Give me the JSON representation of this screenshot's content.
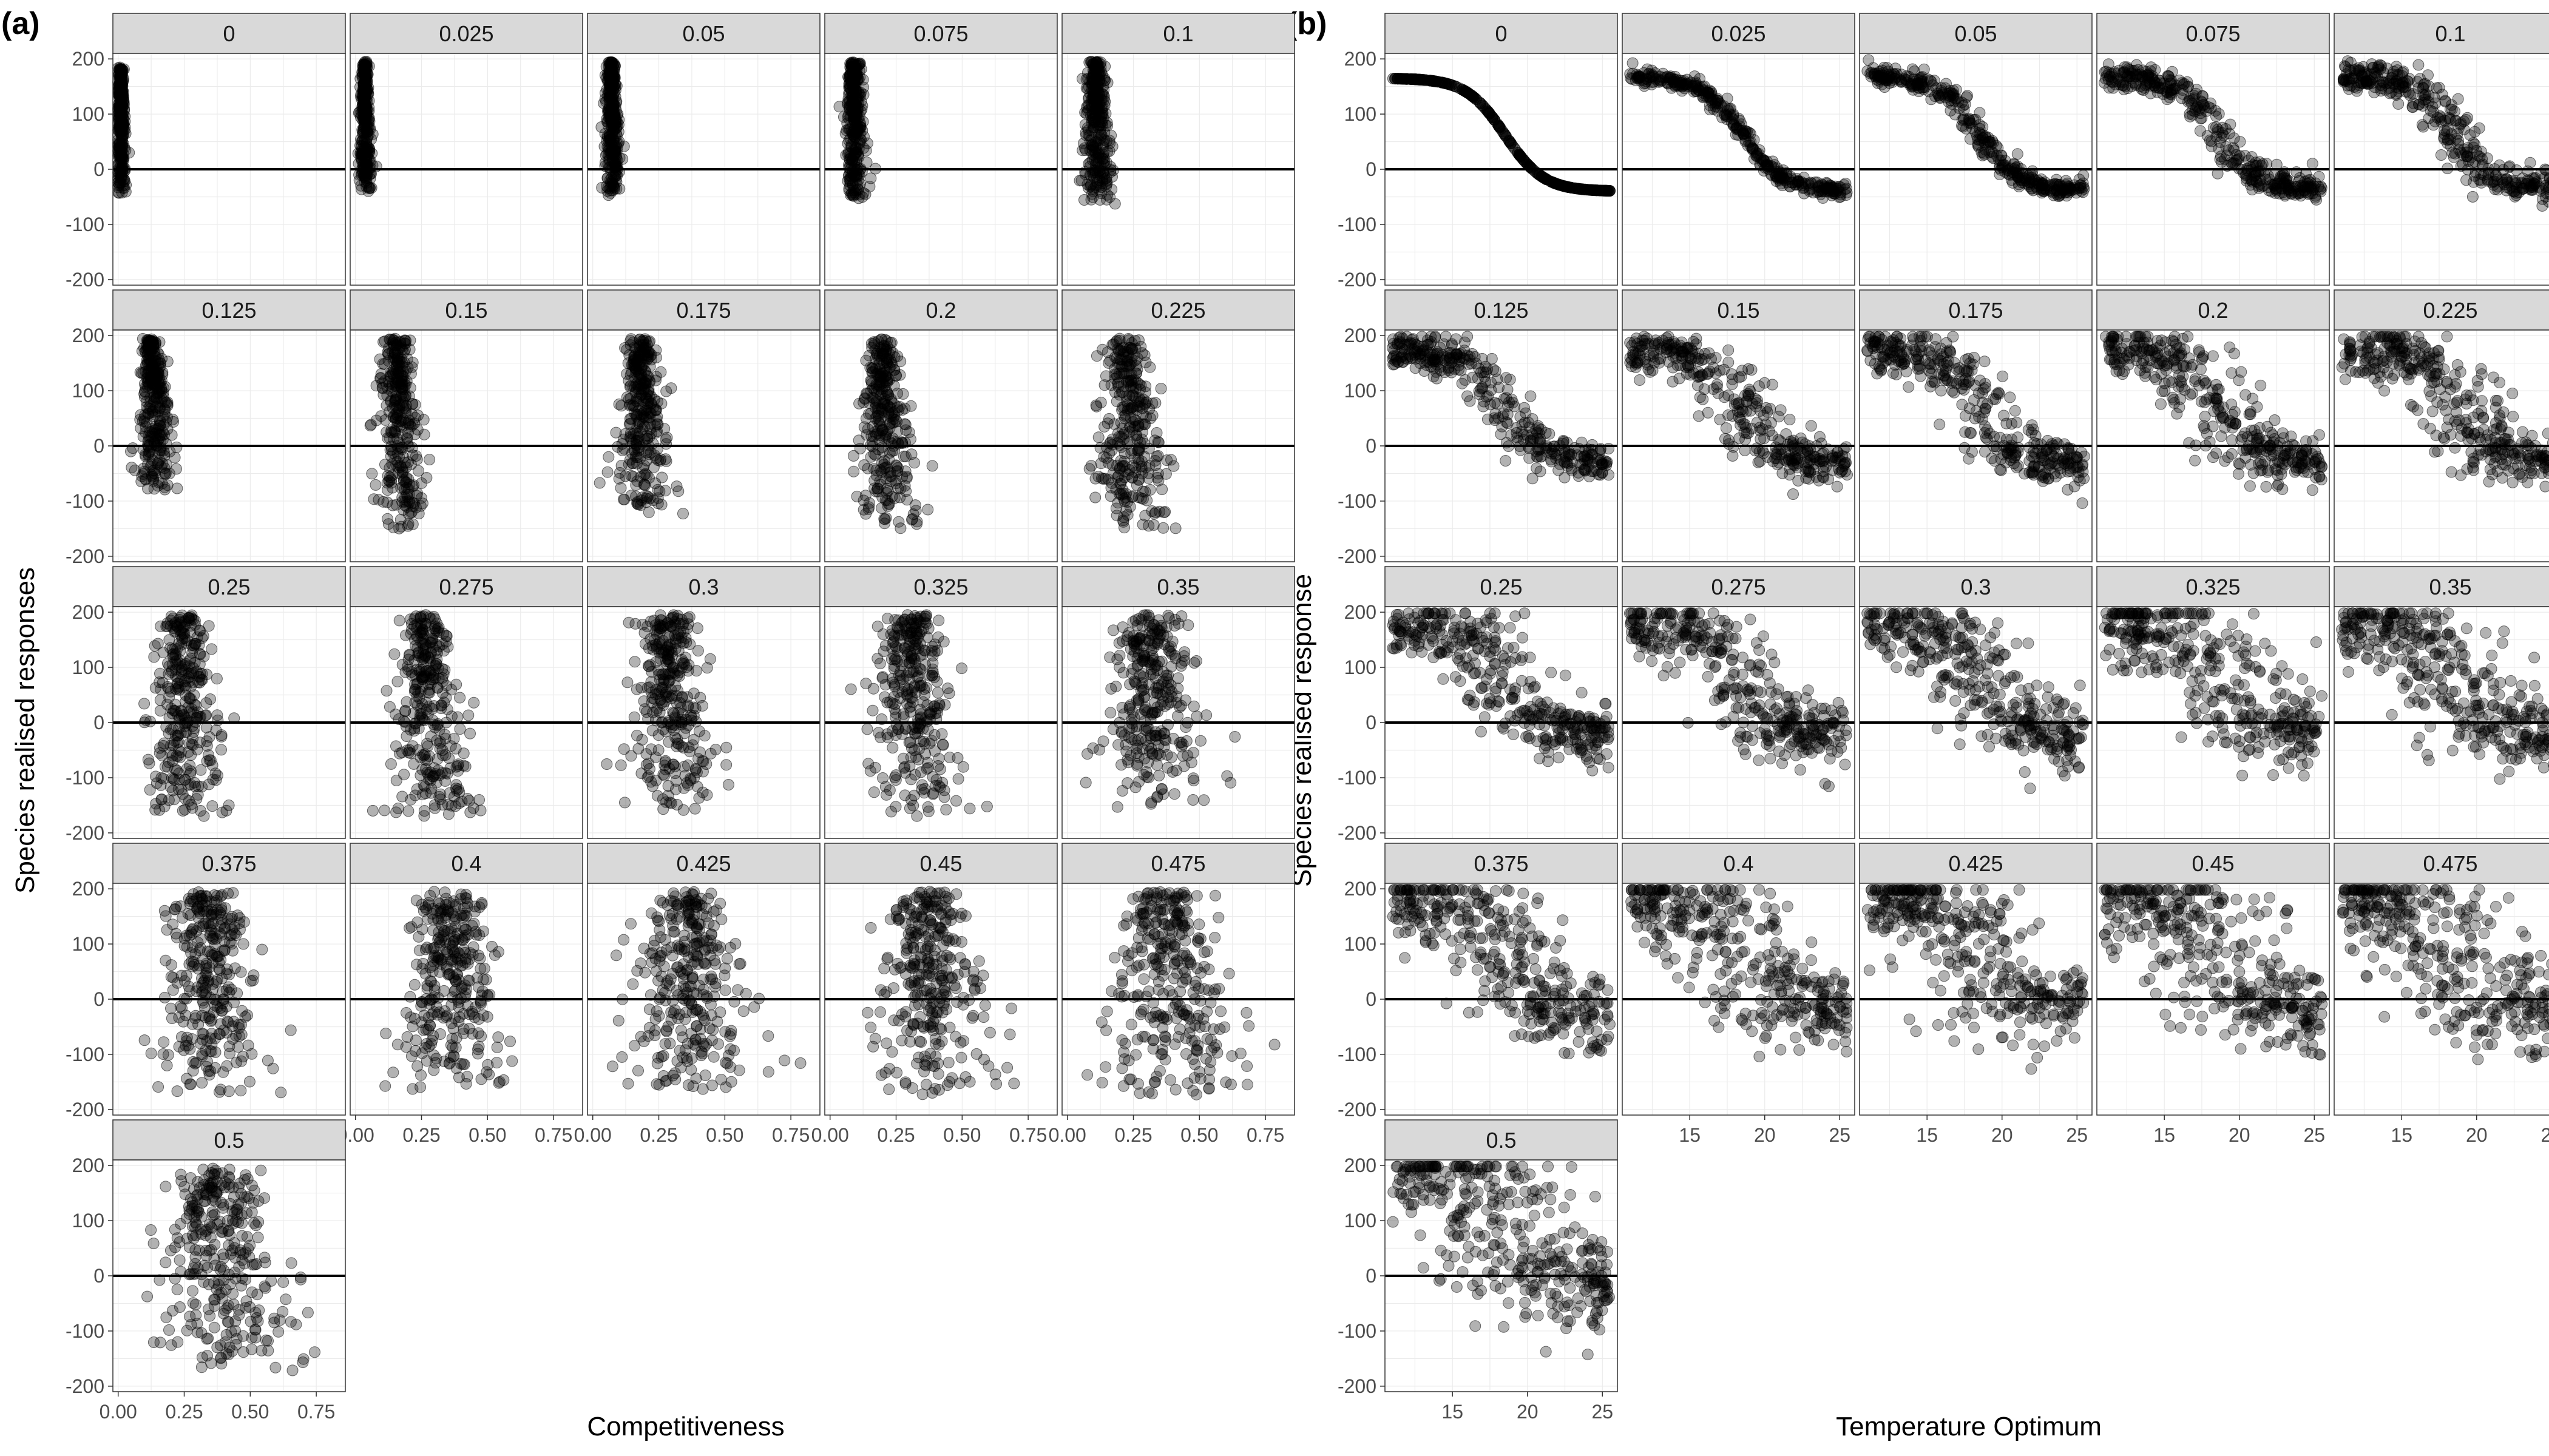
{
  "panels": [
    {
      "label": "(a)",
      "xlabel": "Competitiveness",
      "ylabel": "Species realised responses"
    },
    {
      "label": "(b)",
      "xlabel": "Temperature Optimum",
      "ylabel": "Species realised response"
    }
  ],
  "facet_labels": [
    "0",
    "0.025",
    "0.05",
    "0.075",
    "0.1",
    "0.125",
    "0.15",
    "0.175",
    "0.2",
    "0.225",
    "0.25",
    "0.275",
    "0.3",
    "0.325",
    "0.35",
    "0.375",
    "0.4",
    "0.425",
    "0.45",
    "0.475",
    "0.5"
  ],
  "chart_data": [
    {
      "type": "scatter",
      "panel": "(a)",
      "xlabel": "Competitiveness",
      "ylabel": "Species realised responses",
      "xlim": [
        -0.02,
        0.86
      ],
      "ylim": [
        -210,
        210
      ],
      "x_ticks": [
        0.0,
        0.25,
        0.5,
        0.75
      ],
      "x_tick_labels": [
        "0.00",
        "0.25",
        "0.50",
        "0.75"
      ],
      "y_ticks": [
        -200,
        -100,
        0,
        100,
        200
      ],
      "y_tick_labels": [
        "-200",
        "-100",
        "0",
        "100",
        "200"
      ],
      "reference_line_y": 0,
      "point_color": "#000000",
      "point_opacity": 0.3,
      "grid": true,
      "facets": [
        {
          "label": "0",
          "x_center": 0.01,
          "x_spread": 0.008,
          "y_range": [
            -45,
            185
          ]
        },
        {
          "label": "0.025",
          "x_center": 0.035,
          "x_spread": 0.01,
          "y_range": [
            -45,
            195
          ]
        },
        {
          "label": "0.05",
          "x_center": 0.07,
          "x_spread": 0.014,
          "y_range": [
            -50,
            195
          ]
        },
        {
          "label": "0.075",
          "x_center": 0.09,
          "x_spread": 0.02,
          "y_range": [
            -55,
            195
          ]
        },
        {
          "label": "0.1",
          "x_center": 0.11,
          "x_spread": 0.025,
          "y_range": [
            -65,
            195
          ]
        },
        {
          "label": "0.125",
          "x_center": 0.13,
          "x_spread": 0.03,
          "y_range": [
            -80,
            195
          ]
        },
        {
          "label": "0.15",
          "x_center": 0.16,
          "x_spread": 0.04,
          "y_range": [
            -150,
            195
          ]
        },
        {
          "label": "0.175",
          "x_center": 0.18,
          "x_spread": 0.045,
          "y_range": [
            -125,
            195
          ]
        },
        {
          "label": "0.2",
          "x_center": 0.2,
          "x_spread": 0.05,
          "y_range": [
            -150,
            195
          ]
        },
        {
          "label": "0.225",
          "x_center": 0.22,
          "x_spread": 0.06,
          "y_range": [
            -160,
            195
          ]
        },
        {
          "label": "0.25",
          "x_center": 0.24,
          "x_spread": 0.065,
          "y_range": [
            -170,
            195
          ]
        },
        {
          "label": "0.275",
          "x_center": 0.26,
          "x_spread": 0.07,
          "y_range": [
            -175,
            195
          ]
        },
        {
          "label": "0.3",
          "x_center": 0.28,
          "x_spread": 0.08,
          "y_range": [
            -165,
            195
          ]
        },
        {
          "label": "0.325",
          "x_center": 0.3,
          "x_spread": 0.085,
          "y_range": [
            -170,
            195
          ]
        },
        {
          "label": "0.35",
          "x_center": 0.31,
          "x_spread": 0.09,
          "y_range": [
            -165,
            195
          ]
        },
        {
          "label": "0.375",
          "x_center": 0.33,
          "x_spread": 0.095,
          "y_range": [
            -170,
            195
          ]
        },
        {
          "label": "0.4",
          "x_center": 0.34,
          "x_spread": 0.1,
          "y_range": [
            -170,
            195
          ]
        },
        {
          "label": "0.425",
          "x_center": 0.35,
          "x_spread": 0.105,
          "y_range": [
            -170,
            195
          ]
        },
        {
          "label": "0.45",
          "x_center": 0.36,
          "x_spread": 0.11,
          "y_range": [
            -175,
            195
          ]
        },
        {
          "label": "0.475",
          "x_center": 0.37,
          "x_spread": 0.115,
          "y_range": [
            -180,
            195
          ]
        },
        {
          "label": "0.5",
          "x_center": 0.38,
          "x_spread": 0.12,
          "y_range": [
            -175,
            195
          ]
        }
      ]
    },
    {
      "type": "scatter",
      "panel": "(b)",
      "xlabel": "Temperature Optimum",
      "ylabel": "Species realised response",
      "xlim": [
        10.5,
        26
      ],
      "ylim": [
        -210,
        210
      ],
      "x_ticks": [
        15,
        20,
        25
      ],
      "x_tick_labels": [
        "15",
        "20",
        "25"
      ],
      "y_ticks": [
        -200,
        -100,
        0,
        100,
        200
      ],
      "y_tick_labels": [
        "-200",
        "-100",
        "0",
        "100",
        "200"
      ],
      "reference_line_y": 0,
      "point_color": "#000000",
      "point_opacity": 0.3,
      "grid": true,
      "curve": {
        "x_min": 11,
        "x_max": 25.5,
        "y_high": 165,
        "y_low": -40,
        "midpoint": 18.5,
        "width": 1.3
      },
      "facets": [
        {
          "label": "0",
          "noise": 0
        },
        {
          "label": "0.025",
          "noise": 0.06
        },
        {
          "label": "0.05",
          "noise": 0.12
        },
        {
          "label": "0.075",
          "noise": 0.18
        },
        {
          "label": "0.1",
          "noise": 0.24
        },
        {
          "label": "0.125",
          "noise": 0.3
        },
        {
          "label": "0.15",
          "noise": 0.35
        },
        {
          "label": "0.175",
          "noise": 0.4
        },
        {
          "label": "0.2",
          "noise": 0.45
        },
        {
          "label": "0.225",
          "noise": 0.5
        },
        {
          "label": "0.25",
          "noise": 0.55
        },
        {
          "label": "0.275",
          "noise": 0.6
        },
        {
          "label": "0.3",
          "noise": 0.64
        },
        {
          "label": "0.325",
          "noise": 0.68
        },
        {
          "label": "0.35",
          "noise": 0.72
        },
        {
          "label": "0.375",
          "noise": 0.76
        },
        {
          "label": "0.4",
          "noise": 0.8
        },
        {
          "label": "0.425",
          "noise": 0.84
        },
        {
          "label": "0.45",
          "noise": 0.88
        },
        {
          "label": "0.475",
          "noise": 0.92
        },
        {
          "label": "0.5",
          "noise": 0.96
        }
      ]
    }
  ]
}
